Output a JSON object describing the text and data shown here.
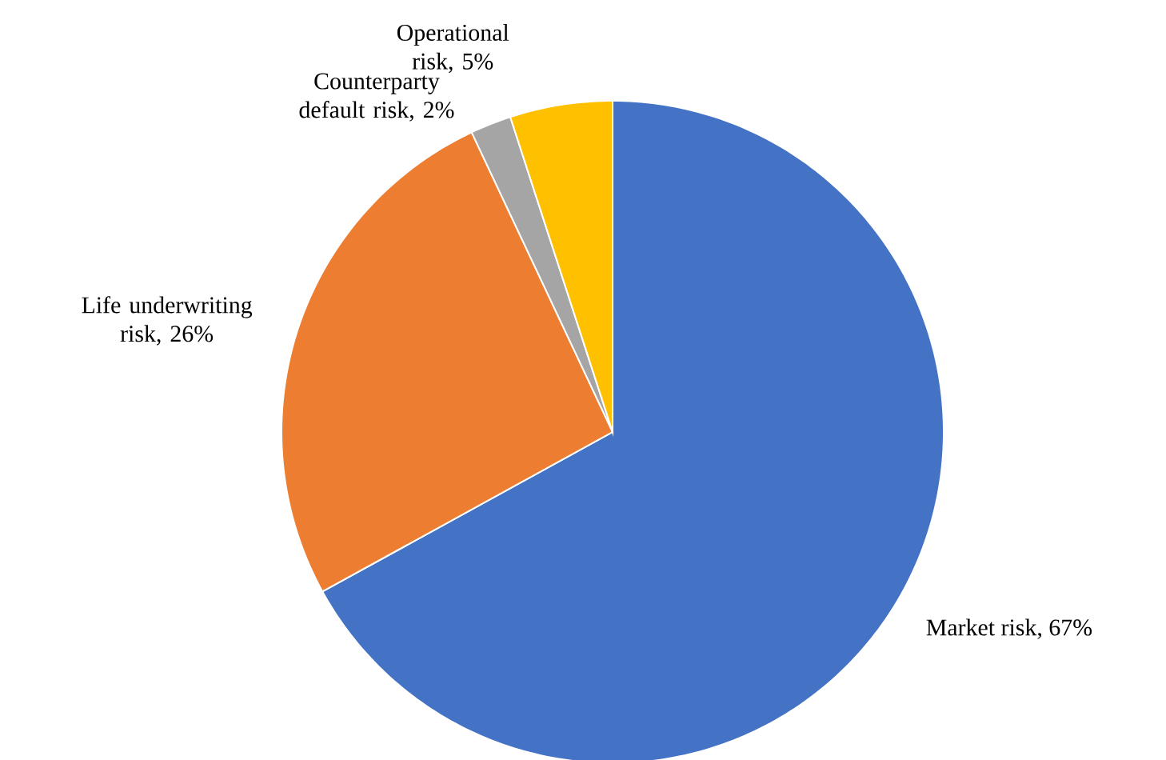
{
  "chart_data": {
    "type": "pie",
    "categories": [
      "Market risk, 67%",
      "Life underwriting risk, 26%",
      "Counterparty default risk, 2%",
      "Operational risk, 5%"
    ],
    "values": [
      67,
      26,
      2,
      5
    ],
    "colors": [
      "#4472c4",
      "#ed7d31",
      "#a5a5a5",
      "#ffc000"
    ]
  }
}
